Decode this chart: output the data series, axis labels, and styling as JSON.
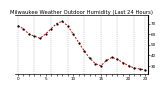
{
  "title": "Milwaukee Weather Outdoor Humidity (Last 24 Hours)",
  "x_values": [
    0,
    1,
    2,
    3,
    4,
    5,
    6,
    7,
    8,
    9,
    10,
    11,
    12,
    13,
    14,
    15,
    16,
    17,
    18,
    19,
    20,
    21,
    22,
    23
  ],
  "y_values": [
    68,
    65,
    60,
    58,
    56,
    60,
    65,
    70,
    72,
    68,
    60,
    52,
    44,
    37,
    32,
    30,
    35,
    38,
    36,
    33,
    30,
    28,
    27,
    26
  ],
  "y_ticks": [
    30,
    40,
    50,
    60,
    70
  ],
  "y_tick_labels": [
    "30",
    "40",
    "50",
    "60",
    "70"
  ],
  "ylim": [
    22,
    78
  ],
  "xlim": [
    -0.5,
    23.5
  ],
  "line_color": "#cc0000",
  "dot_color": "#000000",
  "bg_color": "#ffffff",
  "plot_bg_color": "#ffffff",
  "grid_color": "#999999",
  "title_color": "#000000",
  "title_fontsize": 3.8,
  "tick_fontsize": 3.0,
  "line_width": 0.7,
  "dot_size": 2.5,
  "grid_x_positions": [
    0,
    3,
    6,
    9,
    12,
    15,
    18,
    21,
    23
  ],
  "x_tick_positions": [
    0,
    1,
    2,
    3,
    4,
    5,
    6,
    7,
    8,
    9,
    10,
    11,
    12,
    13,
    14,
    15,
    16,
    17,
    18,
    19,
    20,
    21,
    22,
    23
  ],
  "x_tick_labels": [
    "0",
    "",
    "",
    "",
    "",
    "5",
    "",
    "",
    "",
    "",
    "10",
    "",
    "",
    "",
    "",
    "15",
    "",
    "",
    "",
    "",
    "20",
    "",
    "",
    "23"
  ]
}
